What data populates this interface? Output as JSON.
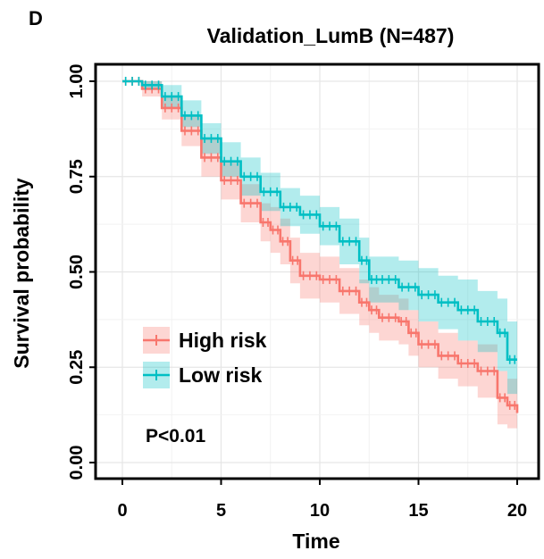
{
  "panel_letter": "D",
  "chart_data": {
    "type": "line",
    "subtype": "kaplan-meier",
    "title": "Validation_LumB (N=487)",
    "xlabel": "Time",
    "ylabel": "Survival probability",
    "xlim": [
      0,
      20
    ],
    "ylim": [
      0,
      1
    ],
    "xticks": [
      "0",
      "5",
      "10",
      "15",
      "20"
    ],
    "yticks": [
      "0.00",
      "0.25",
      "0.50",
      "0.75",
      "1.00"
    ],
    "grid": true,
    "legend_position": "bottom-left",
    "annotation": "P<0.01",
    "series": [
      {
        "name": "High risk",
        "color": "#F8766D",
        "x": [
          0,
          1,
          2,
          3,
          4,
          5,
          6,
          7,
          7.5,
          8,
          8.5,
          9,
          10,
          11,
          12,
          12.5,
          13,
          14,
          14.5,
          15,
          16,
          17,
          18,
          19,
          19.5,
          20
        ],
        "y": [
          1.0,
          0.98,
          0.93,
          0.87,
          0.8,
          0.74,
          0.68,
          0.63,
          0.61,
          0.58,
          0.53,
          0.49,
          0.48,
          0.45,
          0.42,
          0.4,
          0.38,
          0.37,
          0.34,
          0.31,
          0.28,
          0.26,
          0.24,
          0.17,
          0.15,
          0.13
        ],
        "lower": [
          1.0,
          0.96,
          0.9,
          0.83,
          0.75,
          0.69,
          0.63,
          0.58,
          0.55,
          0.52,
          0.47,
          0.43,
          0.42,
          0.39,
          0.36,
          0.34,
          0.32,
          0.31,
          0.28,
          0.25,
          0.22,
          0.2,
          0.17,
          0.1,
          0.09,
          0.07
        ],
        "upper": [
          1.0,
          1.0,
          0.96,
          0.91,
          0.85,
          0.79,
          0.73,
          0.68,
          0.67,
          0.64,
          0.59,
          0.55,
          0.54,
          0.51,
          0.48,
          0.46,
          0.44,
          0.43,
          0.4,
          0.37,
          0.34,
          0.32,
          0.31,
          0.24,
          0.22,
          0.2
        ]
      },
      {
        "name": "Low risk",
        "color": "#00BFC4",
        "x": [
          0,
          1,
          2,
          3,
          4,
          5,
          6,
          7,
          8,
          9,
          10,
          11,
          12,
          12.5,
          13,
          14,
          15,
          16,
          17,
          18,
          19,
          19.5,
          20
        ],
        "y": [
          1.0,
          0.99,
          0.96,
          0.91,
          0.85,
          0.79,
          0.75,
          0.71,
          0.67,
          0.65,
          0.62,
          0.58,
          0.53,
          0.48,
          0.48,
          0.46,
          0.44,
          0.42,
          0.4,
          0.37,
          0.34,
          0.27,
          0.27
        ],
        "lower": [
          1.0,
          0.98,
          0.93,
          0.88,
          0.81,
          0.75,
          0.7,
          0.66,
          0.62,
          0.6,
          0.57,
          0.52,
          0.47,
          0.42,
          0.42,
          0.4,
          0.37,
          0.35,
          0.32,
          0.29,
          0.24,
          0.18,
          0.18
        ],
        "upper": [
          1.0,
          1.0,
          0.99,
          0.95,
          0.89,
          0.84,
          0.8,
          0.76,
          0.72,
          0.7,
          0.67,
          0.64,
          0.59,
          0.54,
          0.54,
          0.53,
          0.51,
          0.49,
          0.48,
          0.45,
          0.43,
          0.37,
          0.37
        ]
      }
    ]
  }
}
